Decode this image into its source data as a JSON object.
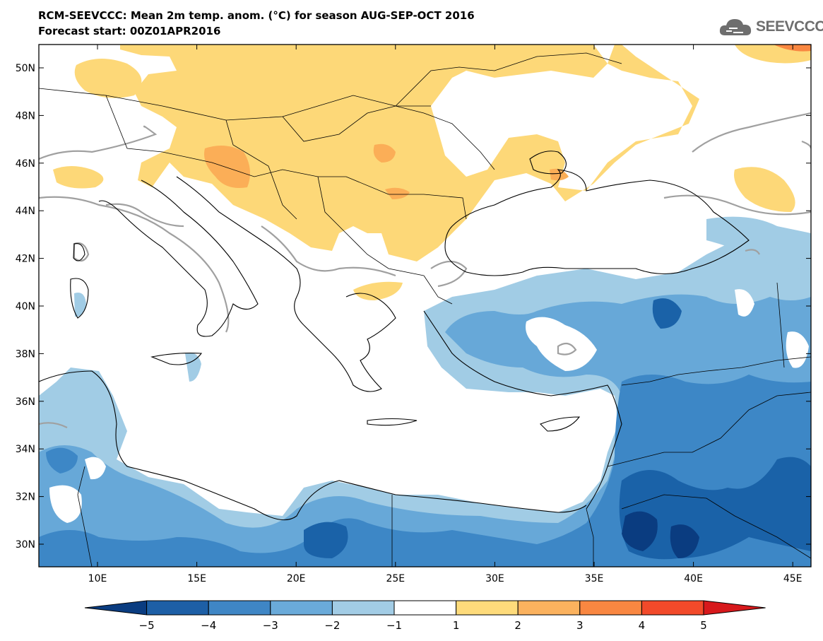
{
  "title": {
    "line1": "RCM-SEEVCCC: Mean 2m temp. anom. (°C) for season AUG-SEP-OCT 2016",
    "line2": "Forecast start: 00Z01APR2016"
  },
  "logo": {
    "text": "SEEVCCC",
    "icon": "cloud-icon"
  },
  "map": {
    "lat_labels": [
      "50N",
      "48N",
      "46N",
      "44N",
      "42N",
      "40N",
      "38N",
      "36N",
      "34N",
      "32N",
      "30N"
    ],
    "lon_labels": [
      "10E",
      "15E",
      "20E",
      "25E",
      "30E",
      "35E",
      "40E",
      "45E"
    ],
    "colors": {
      "land_border": "#000000",
      "zero_contour": "#a0a0a0",
      "warm1": "#fdd878",
      "warm2": "#fbae57",
      "cold1": "#a1cce5",
      "cold2": "#67a8d8",
      "cold3": "#3d87c6",
      "cold4": "#1a62a8",
      "cold5": "#0a3c80"
    }
  },
  "colorbar": {
    "labels": [
      "−5",
      "−4",
      "−3",
      "−2",
      "−1",
      "1",
      "2",
      "3",
      "4",
      "5"
    ],
    "colors": [
      "#0a3c80",
      "#1d5fa6",
      "#3f86c5",
      "#6aaad9",
      "#a2cce5",
      "#ffffff",
      "#fedb7b",
      "#fbb25e",
      "#f98741",
      "#f24a2a",
      "#d7191c"
    ]
  }
}
